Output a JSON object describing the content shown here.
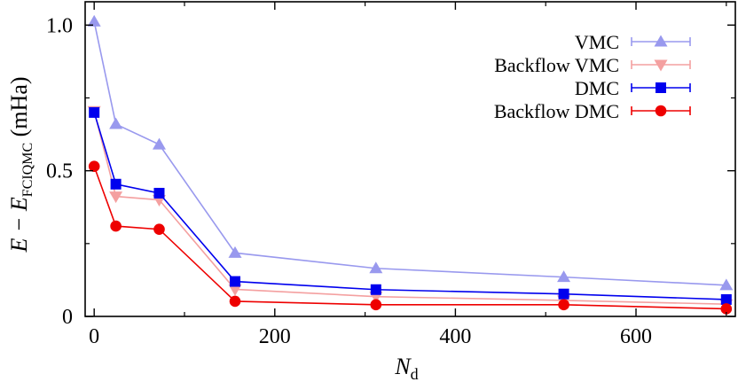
{
  "chart_data": {
    "type": "line",
    "title": "",
    "xlabel": {
      "main": "N",
      "sub": "d"
    },
    "ylabel": {
      "main": "E − E",
      "sub": "FCIQMC",
      "suffix": " (mHa)"
    },
    "xlim": [
      -10,
      710
    ],
    "ylim": [
      0,
      1.08
    ],
    "xticks": [
      0,
      200,
      400,
      600
    ],
    "yticks": [
      0,
      0.5,
      1.0
    ],
    "xtick_labels": [
      "0",
      "200",
      "400",
      "600"
    ],
    "ytick_labels": [
      "0",
      "0.5",
      "1.0"
    ],
    "grid": false,
    "legend_position": "top-right",
    "series": [
      {
        "name": "VMC",
        "color": "#9999ee",
        "marker": "triangle-up",
        "x": [
          0,
          24,
          72,
          156,
          312,
          520,
          700
        ],
        "y": [
          1.012,
          0.66,
          0.59,
          0.218,
          0.165,
          0.135,
          0.107
        ]
      },
      {
        "name": "Backflow VMC",
        "color": "#f4a0a0",
        "marker": "triangle-down",
        "x": [
          0,
          24,
          72,
          156,
          312,
          520,
          700
        ],
        "y": [
          0.705,
          0.412,
          0.4,
          0.093,
          0.068,
          0.055,
          0.042
        ]
      },
      {
        "name": "DMC",
        "color": "#0000ee",
        "marker": "square",
        "x": [
          0,
          24,
          72,
          156,
          312,
          520,
          700
        ],
        "y": [
          0.7,
          0.454,
          0.423,
          0.12,
          0.092,
          0.077,
          0.058
        ]
      },
      {
        "name": "Backflow DMC",
        "color": "#ee0000",
        "marker": "circle",
        "x": [
          0,
          24,
          72,
          156,
          312,
          520,
          700
        ],
        "y": [
          0.515,
          0.31,
          0.299,
          0.052,
          0.04,
          0.04,
          0.026
        ]
      }
    ]
  }
}
